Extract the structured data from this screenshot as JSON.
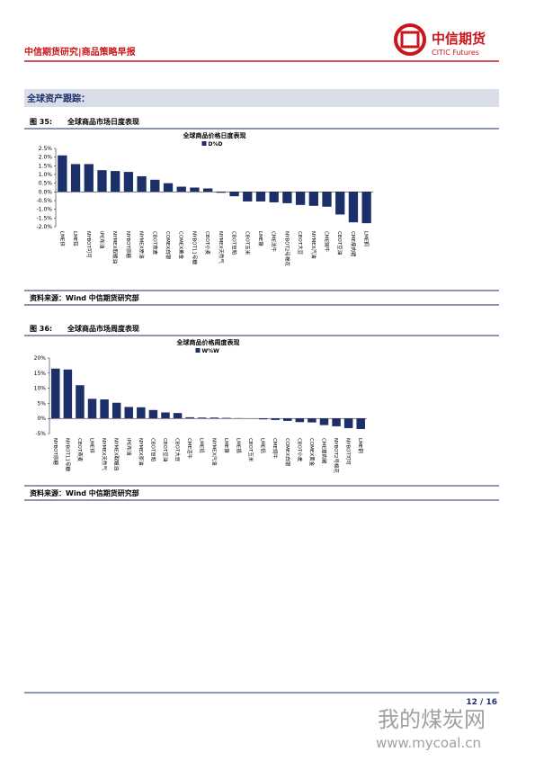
{
  "header": {
    "title": "中信期货研究|商品策略早报",
    "logo_cn": "中信期货",
    "logo_en": "CITIC Futures"
  },
  "section_title": "全球资产跟踪：",
  "figures": [
    {
      "label": "图 35:",
      "title": "全球商品市场日度表现",
      "source": "资料来源：Wind 中信期货研究部"
    },
    {
      "label": "图 36:",
      "title": "全球商品市场周度表现",
      "source": "资料来源：Wind 中信期货研究部"
    }
  ],
  "chart_data": [
    {
      "type": "bar",
      "title": "全球商品价格日度表现",
      "series": [
        {
          "name": "D%D",
          "color": "#1c2f6b",
          "values": [
            2.1,
            1.6,
            1.6,
            1.25,
            1.2,
            1.15,
            0.9,
            0.7,
            0.5,
            0.3,
            0.25,
            0.2,
            -0.05,
            -0.25,
            -0.55,
            -0.55,
            -0.6,
            -0.65,
            -0.75,
            -0.8,
            -0.85,
            -1.3,
            -1.75,
            -1.8
          ]
        }
      ],
      "categories": [
        "LME锌",
        "LME铅",
        "NYBOT可可",
        "IPE布油",
        "NYMEX取暖油",
        "NYBOT原糖",
        "NYMEX原油",
        "CBOT燕麦",
        "COMEX白银",
        "COMEX黄金",
        "NYBOT11号糖",
        "CBOT小麦",
        "NYMEX天然气",
        "CBOT豆粕",
        "CBOT玉米",
        "LME镍",
        "CME活牛",
        "NYBOT2号棉花",
        "CBOT大豆",
        "NYMEX汽油",
        "CME饲牛",
        "CBOT豆油",
        "CME瘦肉猪",
        "LME铜"
      ],
      "ylim": [
        -2.0,
        2.5
      ],
      "yticks": [
        {
          "value": -2.0,
          "label": "-2.0%"
        },
        {
          "value": -1.5,
          "label": "-1.5%"
        },
        {
          "value": -1.0,
          "label": "-1.0%"
        },
        {
          "value": -0.5,
          "label": "-0.5%"
        },
        {
          "value": 0,
          "label": "0.0%"
        },
        {
          "value": 0.5,
          "label": "0.5%"
        },
        {
          "value": 1.0,
          "label": "1.0%"
        },
        {
          "value": 1.5,
          "label": "1.5%"
        },
        {
          "value": 2.0,
          "label": "2.0%"
        },
        {
          "value": 2.5,
          "label": "2.5%"
        }
      ],
      "legend": "top"
    },
    {
      "type": "bar",
      "title": "全球商品价格周度表现",
      "series": [
        {
          "name": "W%W",
          "color": "#1c2f6b",
          "values": [
            16.5,
            16.2,
            11,
            6.5,
            6.3,
            5.2,
            3.8,
            3.7,
            2.8,
            2,
            1.8,
            0.4,
            0.3,
            0.3,
            0.2,
            0.1,
            0,
            -0.3,
            -0.5,
            -0.8,
            -1.2,
            -1.3,
            -2.2,
            -2.6,
            -3.2,
            -3.5
          ]
        }
      ],
      "categories": [
        "NYBOT原糖",
        "NYBOT11号糖",
        "CBOT燕麦",
        "LME锌",
        "NYMEX天然气",
        "NYMEX取暖油",
        "IPE布油",
        "NYMEX原油",
        "CBOT豆粕",
        "CBOT豆油",
        "CBOT大豆",
        "CME活牛",
        "LME铅",
        "NYMEX汽油",
        "LME镍",
        "LME锡",
        "CBOT玉米",
        "LME铝",
        "CME饲牛",
        "COMEX白银",
        "CBOT小麦",
        "COMEX黄金",
        "CME瘦肉猪",
        "NYBOT2号棉花",
        "NYBOT可可",
        "LME铜"
      ],
      "ylim": [
        -5,
        20
      ],
      "yticks": [
        {
          "value": -5,
          "label": "-5%"
        },
        {
          "value": 0,
          "label": "0%"
        },
        {
          "value": 5,
          "label": "5%"
        },
        {
          "value": 10,
          "label": "10%"
        },
        {
          "value": 15,
          "label": "15%"
        },
        {
          "value": 20,
          "label": "20%"
        }
      ],
      "legend": "top"
    }
  ],
  "footer": {
    "page": "12 / 16"
  },
  "watermark": {
    "name": "我的煤炭网",
    "url": "www.mycoal.cn"
  }
}
